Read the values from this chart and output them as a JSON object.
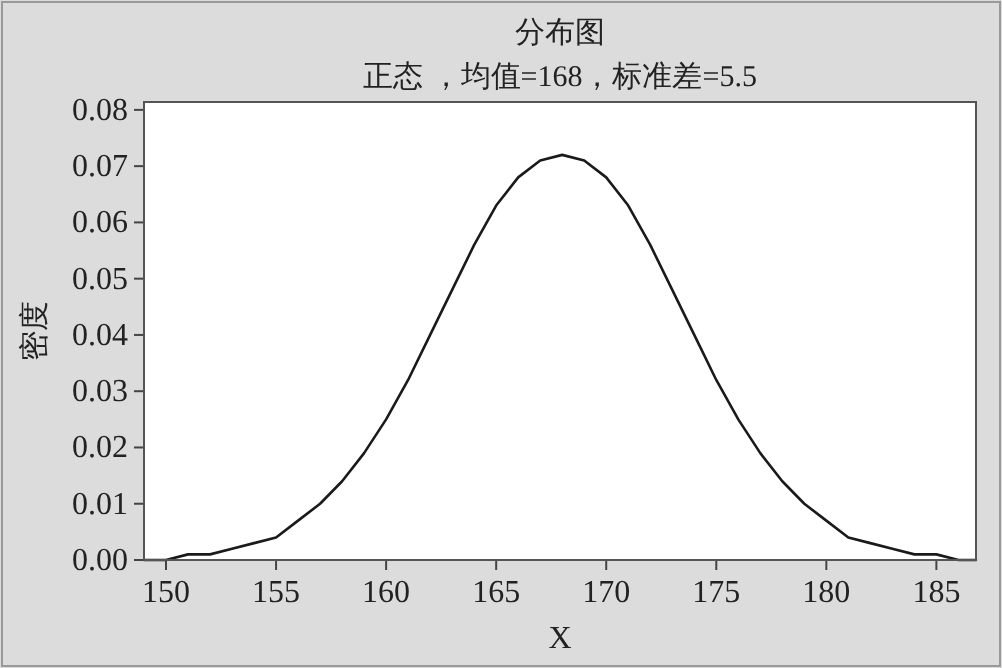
{
  "chart_data": {
    "type": "line",
    "title": "分布图",
    "subtitle": "正态 ，均值=168，标准差=5.5",
    "xlabel": "X",
    "ylabel": "密度",
    "x": [
      149,
      150,
      151,
      152,
      153,
      154,
      155,
      156,
      157,
      158,
      159,
      160,
      161,
      162,
      163,
      164,
      165,
      166,
      167,
      168,
      169,
      170,
      171,
      172,
      173,
      174,
      175,
      176,
      177,
      178,
      179,
      180,
      181,
      182,
      183,
      184,
      185,
      186,
      186.8
    ],
    "series": [
      {
        "color": "#1a1a1a",
        "values": [
          0.0,
          0.0,
          0.001,
          0.001,
          0.002,
          0.003,
          0.004,
          0.007,
          0.01,
          0.014,
          0.019,
          0.025,
          0.032,
          0.04,
          0.048,
          0.056,
          0.063,
          0.068,
          0.071,
          0.072,
          0.071,
          0.068,
          0.063,
          0.056,
          0.048,
          0.04,
          0.032,
          0.025,
          0.019,
          0.014,
          0.01,
          0.007,
          0.004,
          0.003,
          0.002,
          0.001,
          0.001,
          0.0,
          0.0
        ]
      }
    ],
    "xlim": [
      149,
      186.8
    ],
    "ylim": [
      0,
      0.0814
    ],
    "xticks": [
      150,
      155,
      160,
      165,
      170,
      175,
      180,
      185
    ],
    "yticks": [
      {
        "value": 0,
        "label": "0.00"
      },
      {
        "value": 0.01,
        "label": "0.01"
      },
      {
        "value": 0.02,
        "label": "0.02"
      },
      {
        "value": 0.03,
        "label": "0.03"
      },
      {
        "value": 0.04,
        "label": "0.04"
      },
      {
        "value": 0.05,
        "label": "0.05"
      },
      {
        "value": 0.06,
        "label": "0.06"
      },
      {
        "value": 0.07,
        "label": "0.07"
      },
      {
        "value": 0.08,
        "label": "0.08"
      }
    ]
  }
}
